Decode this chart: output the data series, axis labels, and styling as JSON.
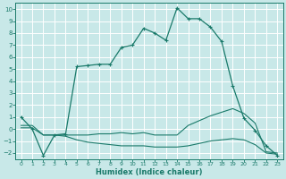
{
  "xlabel": "Humidex (Indice chaleur)",
  "background_color": "#c8e8e8",
  "grid_color": "#ffffff",
  "line_color": "#1a7a6a",
  "xlim": [
    -0.5,
    23.5
  ],
  "ylim": [
    -2.5,
    10.5
  ],
  "xticks": [
    0,
    1,
    2,
    3,
    4,
    5,
    6,
    7,
    8,
    9,
    10,
    11,
    12,
    13,
    14,
    15,
    16,
    17,
    18,
    19,
    20,
    21,
    22,
    23
  ],
  "yticks": [
    -2,
    -1,
    0,
    1,
    2,
    3,
    4,
    5,
    6,
    7,
    8,
    9,
    10
  ],
  "line1_x": [
    0,
    1,
    2,
    3,
    4,
    5,
    6,
    7,
    8,
    9,
    10,
    11,
    12,
    13,
    14,
    15,
    16,
    17,
    18,
    19,
    20,
    21,
    22,
    23
  ],
  "line1_y": [
    1.0,
    0.0,
    -2.2,
    -0.5,
    -0.4,
    5.2,
    5.3,
    5.4,
    5.4,
    6.8,
    7.0,
    8.4,
    8.0,
    7.4,
    10.1,
    9.2,
    9.2,
    8.5,
    7.3,
    3.6,
    0.9,
    -0.1,
    -1.4,
    -2.2
  ],
  "line2_x": [
    0,
    1,
    2,
    3,
    4,
    5,
    6,
    7,
    8,
    9,
    10,
    11,
    12,
    13,
    14,
    15,
    16,
    17,
    18,
    19,
    20,
    21,
    22,
    23
  ],
  "line2_y": [
    0.3,
    0.3,
    -0.5,
    -0.5,
    -0.5,
    -0.5,
    -0.5,
    -0.4,
    -0.4,
    -0.3,
    -0.4,
    -0.3,
    -0.5,
    -0.5,
    -0.5,
    0.3,
    0.7,
    1.1,
    1.4,
    1.7,
    1.3,
    0.5,
    -1.9,
    -2.0
  ],
  "line3_x": [
    0,
    1,
    2,
    3,
    4,
    5,
    6,
    7,
    8,
    9,
    10,
    11,
    12,
    13,
    14,
    15,
    16,
    17,
    18,
    19,
    20,
    21,
    22,
    23
  ],
  "line3_y": [
    0.1,
    0.1,
    -0.5,
    -0.5,
    -0.6,
    -0.9,
    -1.1,
    -1.2,
    -1.3,
    -1.4,
    -1.4,
    -1.4,
    -1.5,
    -1.5,
    -1.5,
    -1.4,
    -1.2,
    -1.0,
    -0.9,
    -0.8,
    -0.9,
    -1.3,
    -2.0,
    -2.1
  ]
}
